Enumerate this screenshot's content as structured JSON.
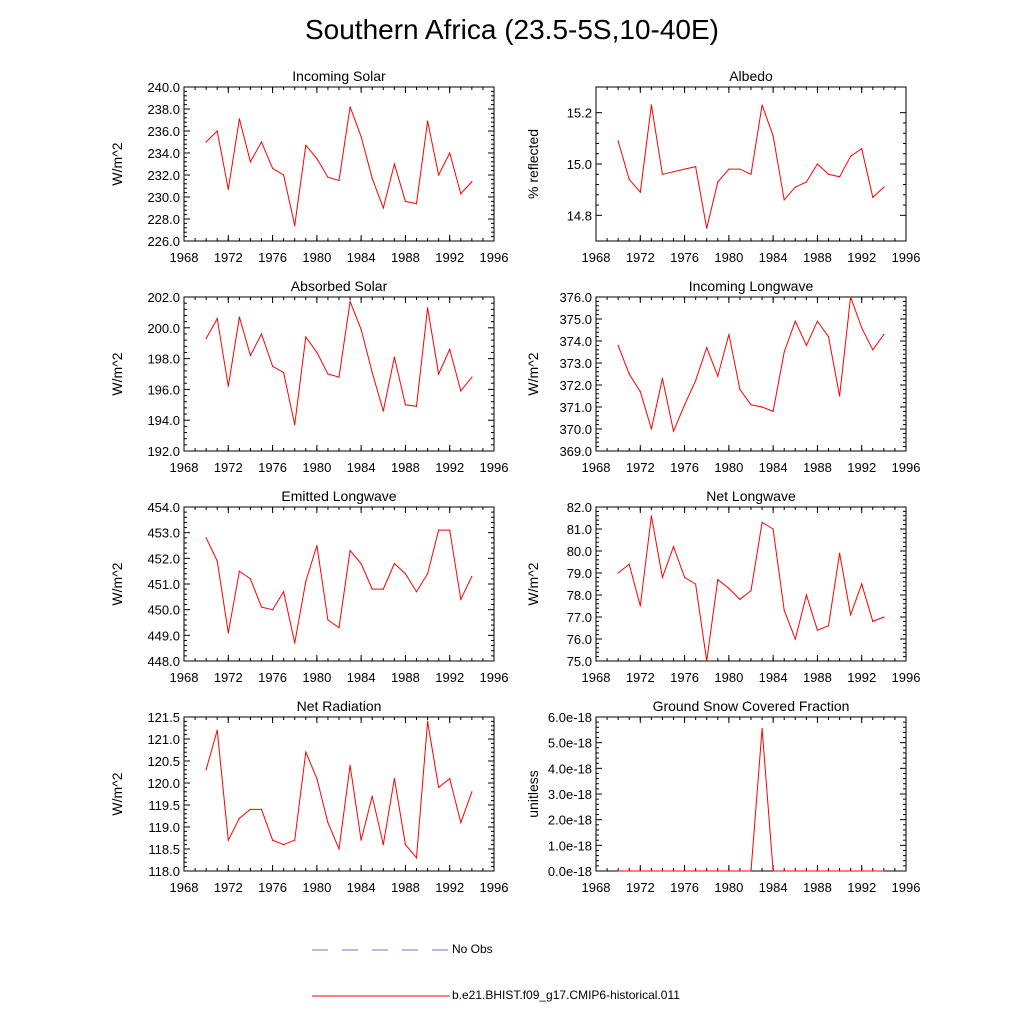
{
  "title": "Southern Africa (23.5-5S,10-40E)",
  "colors": {
    "model": "#ff0000",
    "obs": "#6a78c8",
    "axis": "#000000"
  },
  "legend": {
    "obs_label": "No Obs",
    "model_label": "b.e21.BHIST.f09_g17.CMIP6-historical.011"
  },
  "chart_data": [
    {
      "type": "line",
      "title": "Incoming Solar",
      "xlabel": "",
      "ylabel": "W/m^2",
      "xlim": [
        1968,
        1996
      ],
      "ylim": [
        226,
        240
      ],
      "xticks": [
        "1968",
        "1972",
        "1976",
        "1980",
        "1984",
        "1988",
        "1992",
        "1996"
      ],
      "yticks": [
        "226.0",
        "228.0",
        "230.0",
        "232.0",
        "234.0",
        "236.0",
        "238.0",
        "240.0"
      ],
      "x": [
        1970,
        1971,
        1972,
        1973,
        1974,
        1975,
        1976,
        1977,
        1978,
        1979,
        1980,
        1981,
        1982,
        1983,
        1984,
        1985,
        1986,
        1987,
        1988,
        1989,
        1990,
        1991,
        1992,
        1993,
        1994
      ],
      "series": [
        {
          "name": "b.e21.BHIST.f09_g17.CMIP6-historical.011",
          "values": [
            235.0,
            236.0,
            230.7,
            237.1,
            233.2,
            235.0,
            232.6,
            232.0,
            227.4,
            234.7,
            233.5,
            231.8,
            231.5,
            238.2,
            235.5,
            231.7,
            229.0,
            233.0,
            229.6,
            229.4,
            236.9,
            232.0,
            234.0,
            230.3,
            231.4
          ]
        }
      ]
    },
    {
      "type": "line",
      "title": "Albedo",
      "xlabel": "",
      "ylabel": "% reflected",
      "xlim": [
        1968,
        1996
      ],
      "ylim": [
        14.7,
        15.3
      ],
      "xticks": [
        "1968",
        "1972",
        "1976",
        "1980",
        "1984",
        "1988",
        "1992",
        "1996"
      ],
      "yticks": [
        "14.8",
        "15.0",
        "15.2"
      ],
      "ytick_values": [
        14.8,
        15.0,
        15.2
      ],
      "x": [
        1970,
        1971,
        1972,
        1973,
        1974,
        1975,
        1976,
        1977,
        1978,
        1979,
        1980,
        1981,
        1982,
        1983,
        1984,
        1985,
        1986,
        1987,
        1988,
        1989,
        1990,
        1991,
        1992,
        1993,
        1994
      ],
      "series": [
        {
          "name": "b.e21.BHIST.f09_g17.CMIP6-historical.011",
          "values": [
            15.09,
            14.94,
            14.89,
            15.23,
            14.96,
            14.97,
            14.98,
            14.99,
            14.75,
            14.93,
            14.98,
            14.98,
            14.96,
            15.23,
            15.11,
            14.86,
            14.91,
            14.93,
            15.0,
            14.96,
            14.95,
            15.03,
            15.06,
            14.87,
            14.91
          ]
        }
      ]
    },
    {
      "type": "line",
      "title": "Absorbed Solar",
      "xlabel": "",
      "ylabel": "W/m^2",
      "xlim": [
        1968,
        1996
      ],
      "ylim": [
        192,
        202
      ],
      "xticks": [
        "1968",
        "1972",
        "1976",
        "1980",
        "1984",
        "1988",
        "1992",
        "1996"
      ],
      "yticks": [
        "192.0",
        "194.0",
        "196.0",
        "198.0",
        "200.0",
        "202.0"
      ],
      "x": [
        1970,
        1971,
        1972,
        1973,
        1974,
        1975,
        1976,
        1977,
        1978,
        1979,
        1980,
        1981,
        1982,
        1983,
        1984,
        1985,
        1986,
        1987,
        1988,
        1989,
        1990,
        1991,
        1992,
        1993,
        1994
      ],
      "series": [
        {
          "name": "b.e21.BHIST.f09_g17.CMIP6-historical.011",
          "values": [
            199.3,
            200.6,
            196.2,
            200.7,
            198.2,
            199.6,
            197.5,
            197.1,
            193.7,
            199.4,
            198.4,
            197.0,
            196.8,
            201.7,
            199.9,
            197.1,
            194.6,
            198.1,
            195.0,
            194.9,
            201.3,
            197.0,
            198.6,
            195.9,
            196.8
          ]
        }
      ]
    },
    {
      "type": "line",
      "title": "Incoming Longwave",
      "xlabel": "",
      "ylabel": "W/m^2",
      "xlim": [
        1968,
        1996
      ],
      "ylim": [
        369,
        376
      ],
      "xticks": [
        "1968",
        "1972",
        "1976",
        "1980",
        "1984",
        "1988",
        "1992",
        "1996"
      ],
      "yticks": [
        "369.0",
        "370.0",
        "371.0",
        "372.0",
        "373.0",
        "374.0",
        "375.0",
        "376.0"
      ],
      "x": [
        1970,
        1971,
        1972,
        1973,
        1974,
        1975,
        1976,
        1977,
        1978,
        1979,
        1980,
        1981,
        1982,
        1983,
        1984,
        1985,
        1986,
        1987,
        1988,
        1989,
        1990,
        1991,
        1992,
        1993,
        1994
      ],
      "series": [
        {
          "name": "b.e21.BHIST.f09_g17.CMIP6-historical.011",
          "values": [
            373.8,
            372.5,
            371.7,
            370.0,
            372.3,
            369.9,
            371.1,
            372.2,
            373.7,
            372.4,
            374.3,
            371.8,
            371.1,
            371.0,
            370.8,
            373.5,
            374.9,
            373.8,
            374.9,
            374.2,
            371.5,
            376.0,
            374.6,
            373.6,
            374.3
          ]
        }
      ]
    },
    {
      "type": "line",
      "title": "Emitted Longwave",
      "xlabel": "",
      "ylabel": "W/m^2",
      "xlim": [
        1968,
        1996
      ],
      "ylim": [
        448,
        454
      ],
      "xticks": [
        "1968",
        "1972",
        "1976",
        "1980",
        "1984",
        "1988",
        "1992",
        "1996"
      ],
      "yticks": [
        "448.0",
        "449.0",
        "450.0",
        "451.0",
        "452.0",
        "453.0",
        "454.0"
      ],
      "x": [
        1970,
        1971,
        1972,
        1973,
        1974,
        1975,
        1976,
        1977,
        1978,
        1979,
        1980,
        1981,
        1982,
        1983,
        1984,
        1985,
        1986,
        1987,
        1988,
        1989,
        1990,
        1991,
        1992,
        1993,
        1994
      ],
      "series": [
        {
          "name": "b.e21.BHIST.f09_g17.CMIP6-historical.011",
          "values": [
            452.8,
            451.9,
            449.1,
            451.5,
            451.2,
            450.1,
            450.0,
            450.7,
            448.7,
            451.1,
            452.5,
            449.6,
            449.3,
            452.3,
            451.8,
            450.8,
            450.8,
            451.8,
            451.4,
            450.7,
            451.4,
            453.1,
            453.1,
            450.4,
            451.3
          ]
        }
      ]
    },
    {
      "type": "line",
      "title": "Net Longwave",
      "xlabel": "",
      "ylabel": "W/m^2",
      "xlim": [
        1968,
        1996
      ],
      "ylim": [
        75,
        82
      ],
      "xticks": [
        "1968",
        "1972",
        "1976",
        "1980",
        "1984",
        "1988",
        "1992",
        "1996"
      ],
      "yticks": [
        "75.0",
        "76.0",
        "77.0",
        "78.0",
        "79.0",
        "80.0",
        "81.0",
        "82.0"
      ],
      "x": [
        1970,
        1971,
        1972,
        1973,
        1974,
        1975,
        1976,
        1977,
        1978,
        1979,
        1980,
        1981,
        1982,
        1983,
        1984,
        1985,
        1986,
        1987,
        1988,
        1989,
        1990,
        1991,
        1992,
        1993,
        1994
      ],
      "series": [
        {
          "name": "b.e21.BHIST.f09_g17.CMIP6-historical.011",
          "values": [
            79.0,
            79.4,
            77.5,
            81.6,
            78.8,
            80.2,
            78.8,
            78.5,
            75.0,
            78.7,
            78.3,
            77.8,
            78.2,
            81.3,
            81.0,
            77.3,
            76.0,
            78.0,
            76.4,
            76.6,
            79.9,
            77.1,
            78.5,
            76.8,
            77.0
          ]
        }
      ]
    },
    {
      "type": "line",
      "title": "Net Radiation",
      "xlabel": "",
      "ylabel": "W/m^2",
      "xlim": [
        1968,
        1996
      ],
      "ylim": [
        118,
        121.5
      ],
      "xticks": [
        "1968",
        "1972",
        "1976",
        "1980",
        "1984",
        "1988",
        "1992",
        "1996"
      ],
      "yticks": [
        "118.0",
        "118.5",
        "119.0",
        "119.5",
        "120.0",
        "120.5",
        "121.0",
        "121.5"
      ],
      "x": [
        1970,
        1971,
        1972,
        1973,
        1974,
        1975,
        1976,
        1977,
        1978,
        1979,
        1980,
        1981,
        1982,
        1983,
        1984,
        1985,
        1986,
        1987,
        1988,
        1989,
        1990,
        1991,
        1992,
        1993,
        1994
      ],
      "series": [
        {
          "name": "b.e21.BHIST.f09_g17.CMIP6-historical.011",
          "values": [
            120.3,
            121.2,
            118.7,
            119.2,
            119.4,
            119.4,
            118.7,
            118.6,
            118.7,
            120.7,
            120.1,
            119.1,
            118.5,
            120.4,
            118.7,
            119.7,
            118.6,
            120.1,
            118.6,
            118.3,
            121.4,
            119.9,
            120.1,
            119.1,
            119.8
          ]
        }
      ]
    },
    {
      "type": "line",
      "title": "Ground Snow Covered Fraction",
      "xlabel": "",
      "ylabel": "unitless",
      "xlim": [
        1968,
        1996
      ],
      "ylim": [
        0,
        6e-18
      ],
      "xticks": [
        "1968",
        "1972",
        "1976",
        "1980",
        "1984",
        "1988",
        "1992",
        "1996"
      ],
      "yticks": [
        "0.0e-18",
        "1.0e-18",
        "2.0e-18",
        "3.0e-18",
        "4.0e-18",
        "5.0e-18",
        "6.0e-18"
      ],
      "ytick_values": [
        0,
        1e-18,
        2e-18,
        3e-18,
        4e-18,
        5e-18,
        6e-18
      ],
      "x": [
        1970,
        1971,
        1972,
        1973,
        1974,
        1975,
        1976,
        1977,
        1978,
        1979,
        1980,
        1981,
        1982,
        1983,
        1984,
        1985,
        1986,
        1987,
        1988,
        1989,
        1990,
        1991,
        1992,
        1993,
        1994
      ],
      "series": [
        {
          "name": "b.e21.BHIST.f09_g17.CMIP6-historical.011",
          "values": [
            0,
            0,
            0,
            0,
            0,
            0,
            0,
            0,
            0,
            0,
            0,
            0,
            0,
            5.55e-18,
            0,
            0,
            0,
            0,
            0,
            0,
            0,
            0,
            0,
            0,
            0
          ]
        }
      ]
    }
  ]
}
